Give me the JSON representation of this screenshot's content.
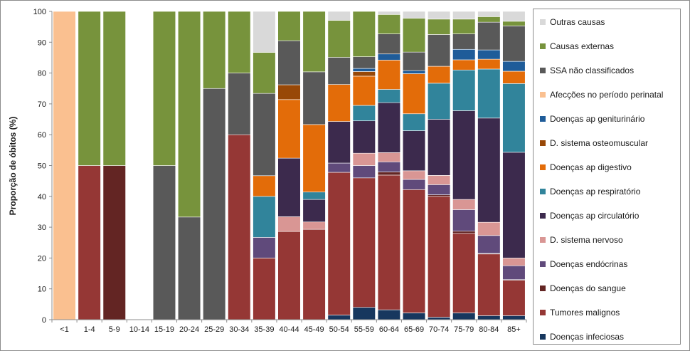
{
  "chart_data": {
    "type": "bar",
    "stacked": true,
    "title": "",
    "xlabel": "",
    "ylabel": "Proporção de óbitos (%)",
    "ylim": [
      0,
      100
    ],
    "yticks": [
      0,
      10,
      20,
      30,
      40,
      50,
      60,
      70,
      80,
      90,
      100
    ],
    "grid": false,
    "legend_position": "right",
    "categories": [
      "<1",
      "1-4",
      "5-9",
      "10-14",
      "15-19",
      "20-24",
      "25-29",
      "30-34",
      "35-39",
      "40-44",
      "45-49",
      "50-54",
      "55-59",
      "60-64",
      "65-69",
      "70-74",
      "75-79",
      "80-84",
      "85+"
    ],
    "series": [
      {
        "name": "Doenças infeciosas",
        "color": "#17375e",
        "values": [
          0,
          0,
          0,
          0,
          0,
          0,
          0,
          0,
          0,
          0,
          0,
          1.5,
          4,
          3.2,
          2.2,
          0.8,
          2.2,
          1.3,
          1.3
        ]
      },
      {
        "name": "Tumores malignos",
        "color": "#953735",
        "values": [
          0,
          50,
          0,
          0,
          0,
          0,
          0,
          60,
          20,
          28.6,
          29.3,
          46.3,
          42,
          43.7,
          40,
          39.2,
          25.8,
          20,
          11.5
        ]
      },
      {
        "name": "Doenças do sangue",
        "color": "#632523",
        "values": [
          0,
          0,
          50,
          0,
          0,
          0,
          0,
          0,
          0,
          0,
          0,
          0,
          0,
          1,
          0,
          0.5,
          0.7,
          0.2,
          0.2
        ]
      },
      {
        "name": "Doenças endócrinas",
        "color": "#604a7b",
        "values": [
          0,
          0,
          0,
          0,
          0,
          0,
          0,
          0,
          6.7,
          0,
          0,
          3,
          4,
          3.3,
          3.3,
          3.3,
          7,
          5.8,
          4.5
        ]
      },
      {
        "name": "D. sistema nervoso",
        "color": "#d99694",
        "values": [
          0,
          0,
          0,
          0,
          0,
          0,
          0,
          0,
          0,
          4.8,
          2.4,
          0,
          4,
          3,
          2.8,
          3,
          3.3,
          4.3,
          2.5
        ]
      },
      {
        "name": "Doenças ap circulatório",
        "color": "#3c2a4d",
        "values": [
          0,
          0,
          0,
          0,
          0,
          0,
          0,
          0,
          0,
          19,
          7.3,
          13.5,
          10.5,
          16.2,
          13,
          18.2,
          28.8,
          33.8,
          34.3
        ]
      },
      {
        "name": "Doenças ap respiratório",
        "color": "#31849b",
        "values": [
          0,
          0,
          0,
          0,
          0,
          0,
          0,
          0,
          13.3,
          0,
          2.4,
          0,
          5,
          4.3,
          5.5,
          11.7,
          13.2,
          15.9,
          22.3
        ]
      },
      {
        "name": "Doenças ap digestivo",
        "color": "#e36c09",
        "values": [
          0,
          0,
          0,
          0,
          0,
          0,
          0,
          0,
          6.7,
          19,
          21.9,
          12,
          9.5,
          9.5,
          13,
          5.5,
          3.3,
          3.2,
          4
        ]
      },
      {
        "name": "D. sistema osteomuscular",
        "color": "#984807",
        "values": [
          0,
          0,
          0,
          0,
          0,
          0,
          0,
          0,
          0,
          4.8,
          0,
          0,
          1.5,
          0,
          0,
          0,
          0,
          0,
          0
        ]
      },
      {
        "name": "Doenças ap geniturinário",
        "color": "#1f5c99",
        "values": [
          0,
          0,
          0,
          0,
          0,
          0,
          0,
          0,
          0,
          0,
          0,
          0,
          1,
          2,
          1,
          0,
          3.4,
          3,
          3.2
        ]
      },
      {
        "name": "Afecções no período perinatal",
        "color": "#fac090",
        "values": [
          100,
          0,
          0,
          0,
          0,
          0,
          0,
          0,
          0,
          0,
          0,
          0,
          0,
          0,
          0,
          0,
          0,
          0,
          0
        ]
      },
      {
        "name": "SSA não classificados",
        "color": "#595959",
        "values": [
          0,
          0,
          0,
          0,
          50,
          33.3,
          75,
          20,
          26.7,
          14.3,
          17.1,
          8.8,
          3.8,
          6.5,
          6,
          10.3,
          5,
          9,
          11.5
        ]
      },
      {
        "name": "Causas externas",
        "color": "#77933c",
        "values": [
          0,
          50,
          50,
          0,
          50,
          66.7,
          25,
          20,
          13.3,
          9.5,
          19.6,
          12,
          14.7,
          6.3,
          11,
          5,
          4.8,
          1.8,
          1.5
        ]
      },
      {
        "name": "Outras causas",
        "color": "#d9d9d9",
        "values": [
          0,
          0,
          0,
          0,
          0,
          0,
          0,
          0,
          13.3,
          0,
          0,
          2.9,
          0,
          1,
          2.2,
          2.5,
          2.5,
          1.7,
          3.2
        ]
      }
    ]
  }
}
